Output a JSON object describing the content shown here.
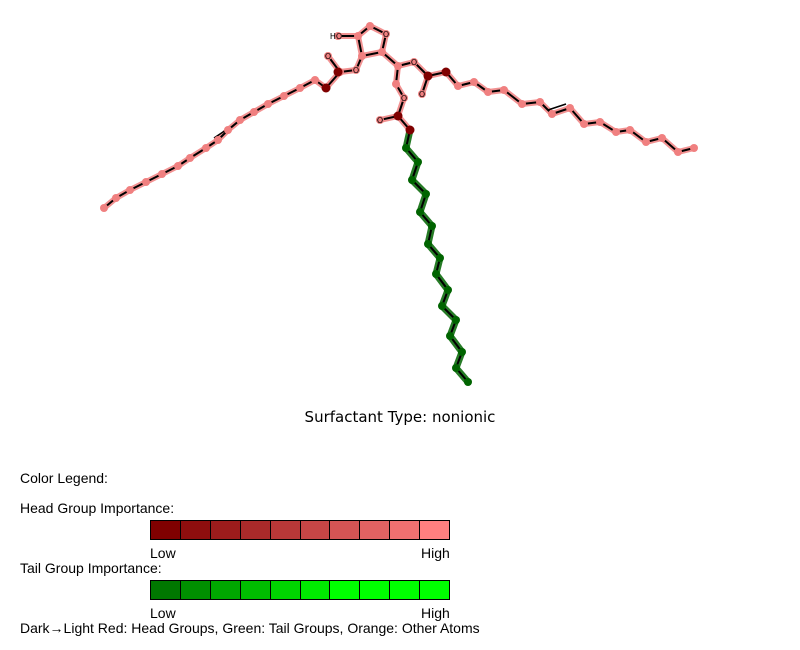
{
  "molecule": {
    "labels": {
      "hydroxyl": "HO",
      "oxygen": "O"
    },
    "colors": {
      "bond": "#000000",
      "head_light": "#f08080",
      "head_dark": "#7f0000",
      "tail": "#006400",
      "hydrogen_hint": "#b0b0c8"
    }
  },
  "caption": "Surfactant Type: nonionic",
  "legend": {
    "title": "Color Legend:",
    "head_title": "Head Group Importance:",
    "tail_title": "Tail Group Importance:",
    "low": "Low",
    "high": "High",
    "head_colors": [
      "#800000",
      "#8e0e0e",
      "#9c1c1c",
      "#aa2a2a",
      "#b83838",
      "#c64646",
      "#d45454",
      "#e26262",
      "#f07070",
      "#ff7f7f"
    ],
    "tail_colors": [
      "#007800",
      "#008f00",
      "#00a600",
      "#00bd00",
      "#00d400",
      "#00eb00",
      "#00ff00",
      "#00ff00",
      "#00ff00",
      "#00ff00"
    ],
    "footer": "Dark→Light Red: Head Groups, Green: Tail Groups, Orange: Other Atoms"
  }
}
